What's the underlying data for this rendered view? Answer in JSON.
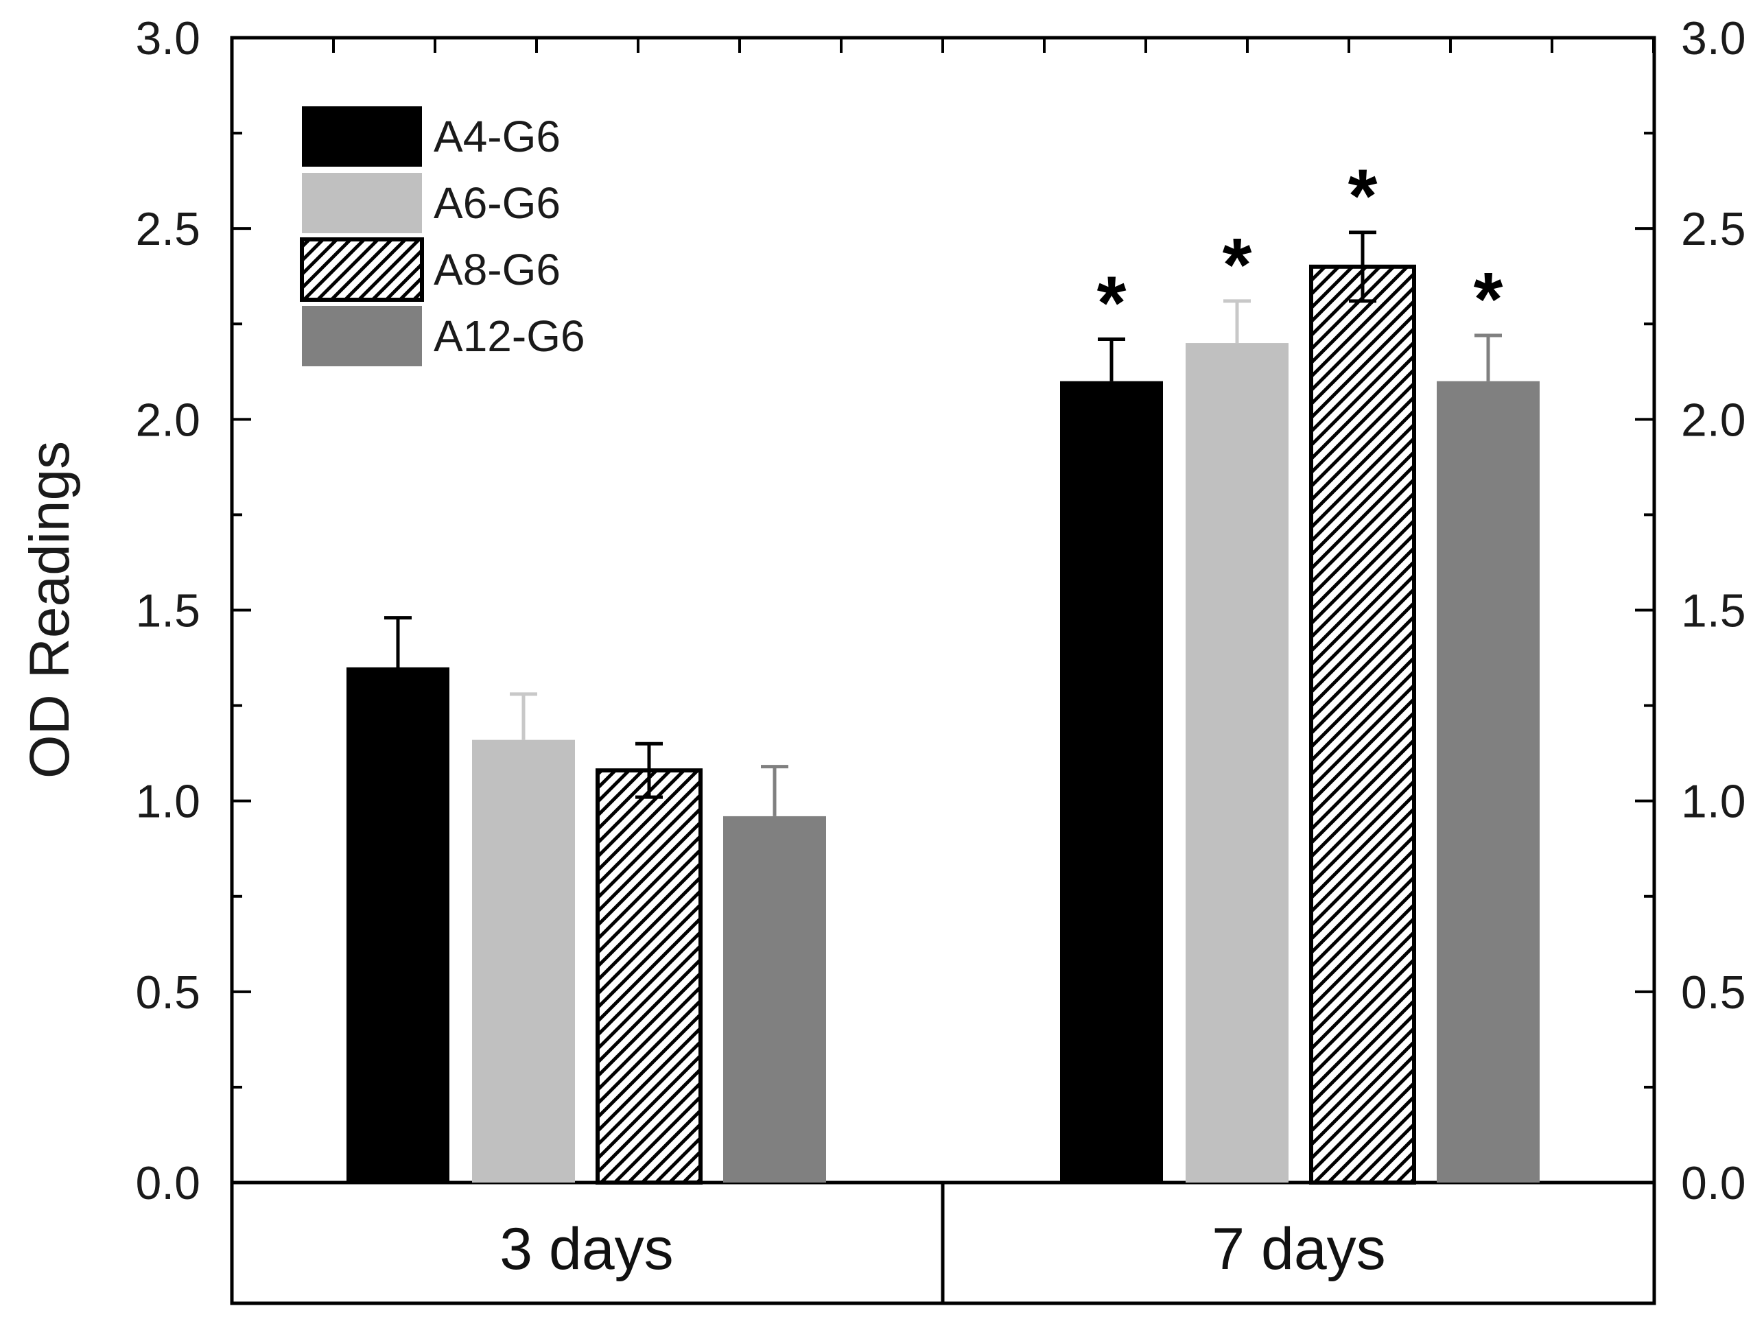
{
  "chart_data": {
    "type": "bar",
    "title": "",
    "xlabel": "",
    "ylabel": "OD Readings",
    "ylim": [
      0,
      3.0
    ],
    "yticks": [
      0.0,
      0.5,
      1.0,
      1.5,
      2.0,
      2.5,
      3.0
    ],
    "ytick_labels": [
      "0.0",
      "0.5",
      "1.0",
      "1.5",
      "2.0",
      "2.5",
      "3.0"
    ],
    "right_axis_mirror": true,
    "legend_position": "top-left",
    "categories": [
      "3 days",
      "7 days"
    ],
    "series": [
      {
        "name": "A4-G6",
        "color": "#000000",
        "pattern": "solid",
        "values": [
          1.35,
          2.1
        ],
        "errors": [
          0.13,
          0.11
        ],
        "significance": [
          "",
          "*"
        ]
      },
      {
        "name": "A6-G6",
        "color": "#c0c0c0",
        "pattern": "solid",
        "values": [
          1.16,
          2.2
        ],
        "errors": [
          0.12,
          0.11
        ],
        "significance": [
          "",
          "*"
        ]
      },
      {
        "name": "A8-G6",
        "color": "#ffffff",
        "pattern": "hatched",
        "values": [
          1.08,
          2.4
        ],
        "errors": [
          0.07,
          0.09
        ],
        "significance": [
          "",
          "*"
        ]
      },
      {
        "name": "A12-G6",
        "color": "#808080",
        "pattern": "solid",
        "values": [
          0.96,
          2.1
        ],
        "errors": [
          0.13,
          0.12
        ],
        "significance": [
          "",
          "*"
        ]
      }
    ]
  }
}
